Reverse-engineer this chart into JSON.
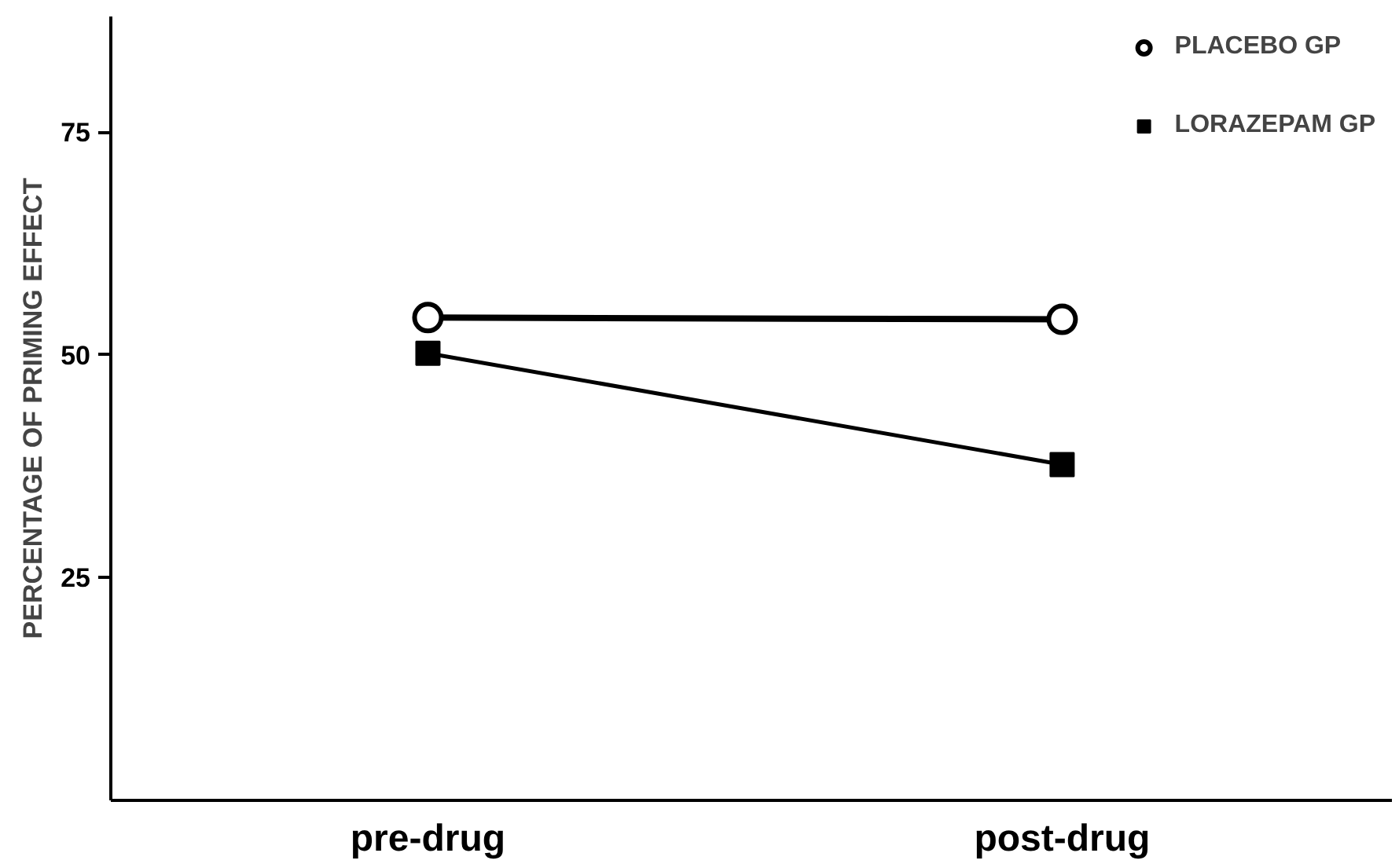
{
  "chart_data": {
    "type": "line",
    "ylabel": "PERCENTAGE OF PRIMING EFFECT",
    "categories": [
      "pre-drug",
      "post-drug"
    ],
    "series": [
      {
        "name": "PLACEBO GP",
        "color": "#000000",
        "values": [
          54.2,
          54.0
        ],
        "marker": "circle"
      },
      {
        "name": "LORAZEPAM GP",
        "color": "#000000",
        "values": [
          50.2,
          37.7
        ],
        "marker": "square"
      }
    ],
    "ylim": [
      0,
      88
    ],
    "yticks": [
      25,
      50,
      75
    ],
    "grid": false,
    "legend": "top right",
    "line_style": "solid"
  }
}
